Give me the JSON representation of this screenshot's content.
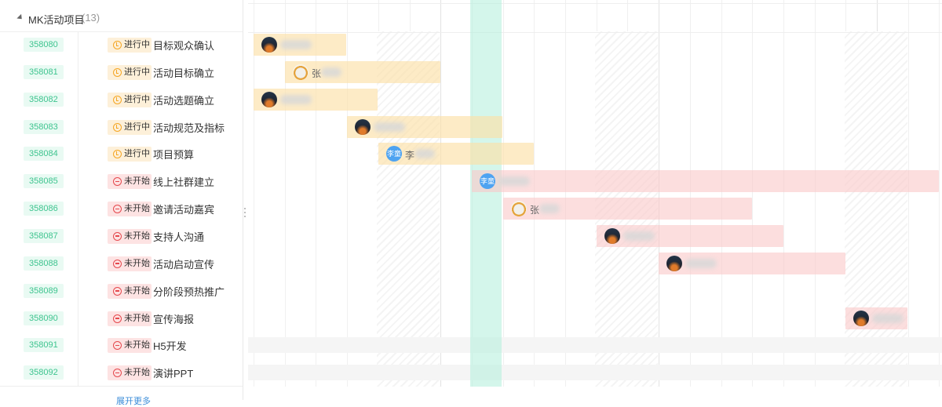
{
  "group": {
    "name": "MK活动项目",
    "count": "(13)"
  },
  "status_labels": {
    "in_progress": "进行中",
    "not_started": "未开始"
  },
  "tasks": [
    {
      "id": "358080",
      "status": "进行中",
      "title": "目标观众确认",
      "avatar": "photo-dark"
    },
    {
      "id": "358081",
      "status": "进行中",
      "title": "活动目标确立",
      "avatar": "photo-dog",
      "name_char": "张"
    },
    {
      "id": "358082",
      "status": "进行中",
      "title": "活动选题确立",
      "avatar": "photo-dark"
    },
    {
      "id": "358083",
      "status": "进行中",
      "title": "活动规范及指标",
      "avatar": "photo-dark"
    },
    {
      "id": "358084",
      "status": "进行中",
      "title": "项目预算",
      "avatar": "李童",
      "name_char": "李"
    },
    {
      "id": "358085",
      "status": "未开始",
      "title": "线上社群建立",
      "avatar": "李童"
    },
    {
      "id": "358086",
      "status": "未开始",
      "title": "邀请活动嘉宾",
      "avatar": "photo-dog",
      "name_char": "张"
    },
    {
      "id": "358087",
      "status": "未开始",
      "title": "支持人沟通",
      "avatar": "photo-dark"
    },
    {
      "id": "358088",
      "status": "未开始",
      "title": "活动启动宣传",
      "avatar": "photo-dark"
    },
    {
      "id": "358089",
      "status": "未开始",
      "title": "分阶段预热推广"
    },
    {
      "id": "358090",
      "status": "未开始",
      "title": "宣传海报",
      "avatar": "photo-dark"
    },
    {
      "id": "358091",
      "status": "未开始",
      "title": "H5开发"
    },
    {
      "id": "358092",
      "status": "未开始",
      "title": "演讲PPT"
    }
  ],
  "footer": {
    "add_label": "展开更多"
  },
  "colors": {
    "id_text": "#3ec48f",
    "in_progress": "#f5a623",
    "not_started": "#e5484d",
    "today": "#b0eeda"
  },
  "icons": {
    "group_toggle": "caret-down-icon",
    "status_in_progress": "clock-icon",
    "status_not_started": "minus-circle-icon"
  }
}
